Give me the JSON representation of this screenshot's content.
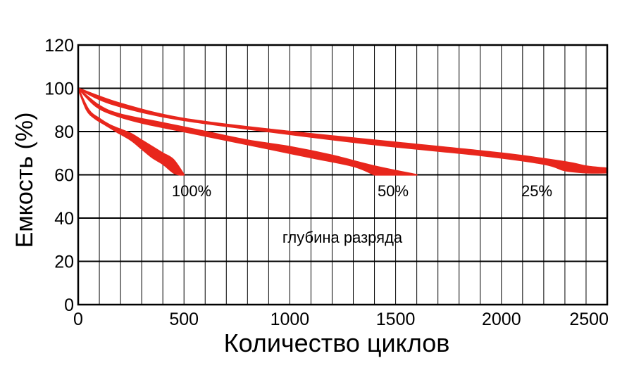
{
  "chart_data": {
    "type": "line",
    "title": "",
    "xlabel": "Количество циклов",
    "ylabel": "Емкость (%)",
    "xlim": [
      0,
      2500
    ],
    "ylim": [
      0,
      120
    ],
    "x_ticks": [
      "0",
      "500",
      "1000",
      "1500",
      "2000",
      "2500"
    ],
    "y_ticks": [
      "0",
      "20",
      "40",
      "60",
      "80",
      "100",
      "120"
    ],
    "x_minor_step": 100,
    "grid": true,
    "line_color": "#e8261c",
    "annotations": [
      "100%",
      "50%",
      "25%",
      "глубина разряда"
    ],
    "series": [
      {
        "name": "100%",
        "upper": [
          [
            0,
            100
          ],
          [
            50,
            90
          ],
          [
            100,
            86
          ],
          [
            150,
            83
          ],
          [
            200,
            81
          ],
          [
            250,
            79
          ],
          [
            300,
            76
          ],
          [
            350,
            73
          ],
          [
            400,
            70
          ],
          [
            450,
            67
          ],
          [
            500,
            60
          ]
        ],
        "lower": [
          [
            0,
            100
          ],
          [
            40,
            90
          ],
          [
            80,
            86
          ],
          [
            130,
            83
          ],
          [
            180,
            80
          ],
          [
            250,
            76
          ],
          [
            300,
            72
          ],
          [
            350,
            68
          ],
          [
            400,
            65
          ],
          [
            450,
            61
          ],
          [
            480,
            60
          ]
        ]
      },
      {
        "name": "50%",
        "upper": [
          [
            0,
            100
          ],
          [
            100,
            92
          ],
          [
            200,
            88
          ],
          [
            400,
            84
          ],
          [
            600,
            80
          ],
          [
            800,
            76
          ],
          [
            1000,
            73
          ],
          [
            1200,
            69
          ],
          [
            1400,
            64
          ],
          [
            1600,
            60
          ]
        ],
        "lower": [
          [
            0,
            100
          ],
          [
            80,
            92
          ],
          [
            160,
            88
          ],
          [
            300,
            84
          ],
          [
            500,
            80
          ],
          [
            700,
            76
          ],
          [
            900,
            72
          ],
          [
            1100,
            68
          ],
          [
            1300,
            64
          ],
          [
            1400,
            60
          ]
        ]
      },
      {
        "name": "25%",
        "upper": [
          [
            0,
            100
          ],
          [
            200,
            93
          ],
          [
            500,
            86
          ],
          [
            1000,
            80
          ],
          [
            1500,
            75
          ],
          [
            2000,
            70
          ],
          [
            2300,
            66
          ],
          [
            2400,
            64
          ],
          [
            2500,
            63
          ]
        ],
        "lower": [
          [
            0,
            100
          ],
          [
            150,
            93
          ],
          [
            450,
            86
          ],
          [
            900,
            80
          ],
          [
            1400,
            74
          ],
          [
            1900,
            69
          ],
          [
            2200,
            65
          ],
          [
            2300,
            62
          ],
          [
            2400,
            61
          ],
          [
            2500,
            61
          ]
        ]
      }
    ]
  }
}
